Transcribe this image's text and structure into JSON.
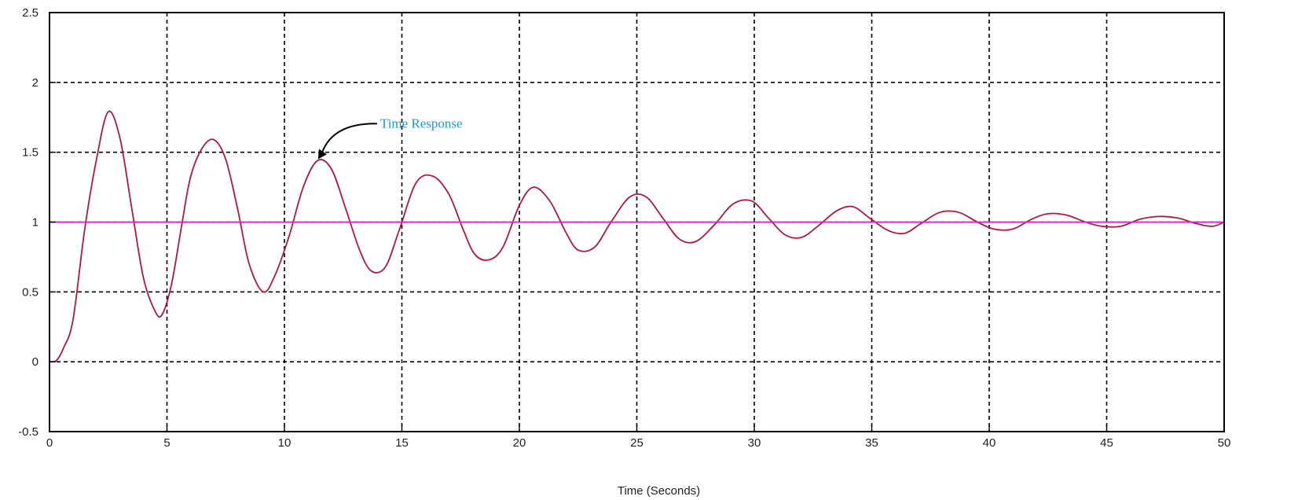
{
  "chart_data": {
    "type": "line",
    "title": "",
    "xlabel": "Time (Seconds)",
    "ylabel": "",
    "xlim": [
      0,
      50
    ],
    "ylim": [
      -0.5,
      2.5
    ],
    "xticks": [
      0,
      5,
      10,
      15,
      20,
      25,
      30,
      35,
      40,
      45,
      50
    ],
    "yticks": [
      -0.5,
      0,
      0.5,
      1,
      1.5,
      2,
      2.5
    ],
    "xtick_labels": [
      "0",
      "5",
      "10",
      "15",
      "20",
      "25",
      "30",
      "35",
      "40",
      "45",
      "50"
    ],
    "ytick_labels": [
      "-0.5",
      "0",
      "0.5",
      "1",
      "1.5",
      "2",
      "2.5"
    ],
    "grid": true,
    "grid_style": "dashed",
    "series": [
      {
        "color": "#b0183c",
        "x": [
          0,
          0.3,
          0.6,
          1.0,
          1.5,
          2.0,
          2.5,
          3.0,
          3.5,
          4.0,
          4.5,
          4.8,
          5.2,
          5.6,
          6.0,
          6.5,
          7.0,
          7.5,
          8.0,
          8.5,
          9.1,
          9.6,
          10.2,
          10.8,
          11.4,
          12.0,
          12.6,
          13.2,
          13.7,
          14.3,
          14.9,
          15.6,
          16.3,
          17.0,
          17.6,
          18.1,
          18.7,
          19.3,
          20.0,
          20.6,
          21.3,
          22.0,
          22.5,
          23.2,
          23.9,
          24.7,
          25.4,
          26.1,
          26.8,
          27.5,
          28.3,
          29.1,
          29.9,
          30.6,
          31.3,
          32.0,
          32.7,
          33.5,
          34.2,
          34.9,
          35.7,
          36.4,
          37.1,
          37.9,
          38.7,
          39.5,
          40.2,
          41.0,
          41.8,
          42.5,
          43.3,
          44.1,
          44.8,
          45.6,
          46.4,
          47.2,
          48.0,
          48.8,
          49.5,
          50.0
        ],
        "values": [
          0,
          0.01,
          0.1,
          0.3,
          0.95,
          1.45,
          1.79,
          1.6,
          1.1,
          0.6,
          0.36,
          0.34,
          0.56,
          0.95,
          1.32,
          1.53,
          1.59,
          1.45,
          1.1,
          0.7,
          0.5,
          0.62,
          0.9,
          1.25,
          1.44,
          1.38,
          1.1,
          0.8,
          0.65,
          0.68,
          0.95,
          1.28,
          1.33,
          1.2,
          0.95,
          0.77,
          0.73,
          0.82,
          1.12,
          1.25,
          1.15,
          0.92,
          0.8,
          0.82,
          1.0,
          1.18,
          1.18,
          1.03,
          0.88,
          0.86,
          0.98,
          1.13,
          1.15,
          1.03,
          0.91,
          0.89,
          0.97,
          1.08,
          1.11,
          1.03,
          0.94,
          0.92,
          0.99,
          1.07,
          1.07,
          1.0,
          0.95,
          0.95,
          1.02,
          1.06,
          1.05,
          1.0,
          0.97,
          0.97,
          1.02,
          1.04,
          1.03,
          0.99,
          0.97,
          1.0
        ]
      },
      {
        "color": "#e020d0",
        "x": [
          0,
          0,
          50
        ],
        "values": [
          0,
          1,
          1
        ]
      }
    ],
    "annotations": [
      {
        "text": "Time Response",
        "color": "#1a9ad6",
        "x": 11.4,
        "y": 1.44
      }
    ]
  }
}
